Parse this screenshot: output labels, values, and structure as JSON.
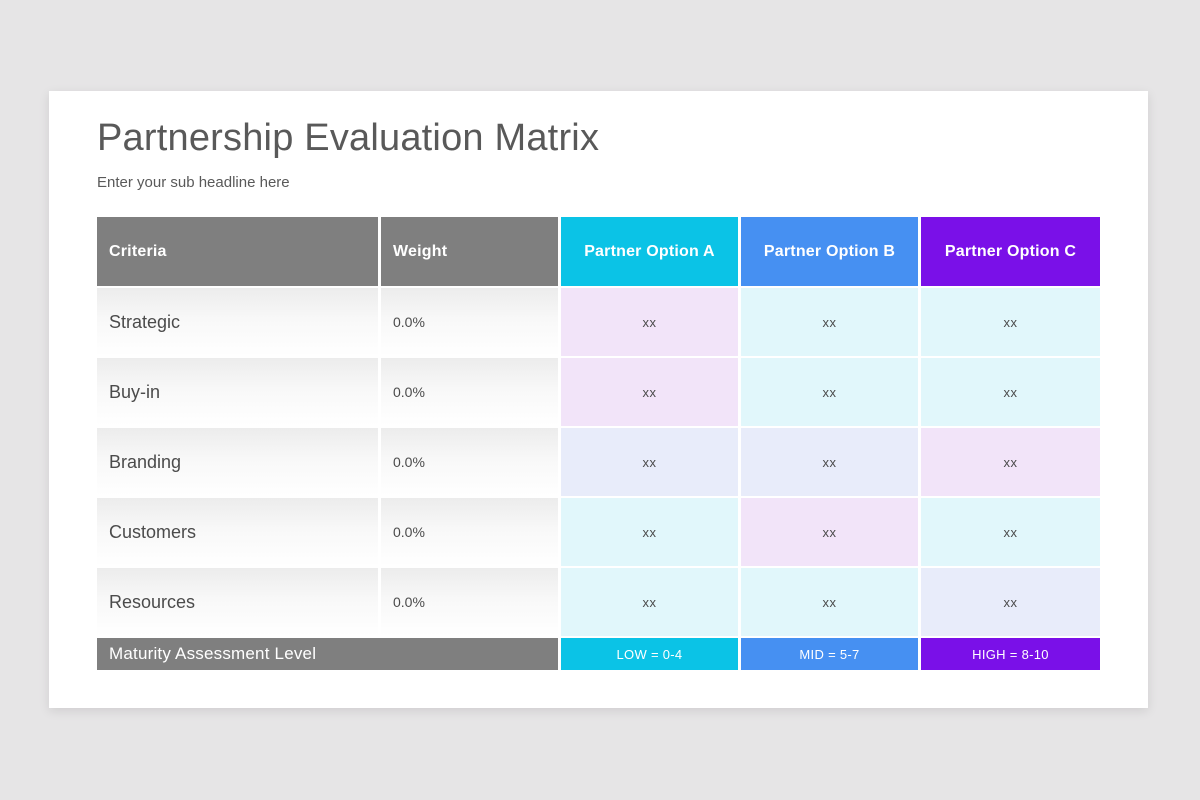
{
  "colors": {
    "page_bg": "#e6e5e6",
    "slide_bg": "#ffffff",
    "header_gray": "#7f7f7f",
    "accent_cyan": "#0bc3e6",
    "accent_blue": "#4690f2",
    "accent_purple": "#7a10e8",
    "tints": {
      "pink": "#f2e4f9",
      "cyan": "#e1f7fb",
      "periwinkle": "#e8ecfa"
    }
  },
  "header": {
    "title": "Partnership Evaluation Matrix",
    "subtitle": "Enter your sub headline here"
  },
  "table": {
    "columns": [
      {
        "key": "criteria",
        "label": "Criteria",
        "bg": "#7f7f7f",
        "align": "left"
      },
      {
        "key": "weight",
        "label": "Weight",
        "bg": "#7f7f7f",
        "align": "left"
      },
      {
        "key": "option-a",
        "label": "Partner Option A",
        "bg": "#0bc3e6",
        "align": "center"
      },
      {
        "key": "option-b",
        "label": "Partner Option B",
        "bg": "#4690f2",
        "align": "center"
      },
      {
        "key": "option-c",
        "label": "Partner Option C",
        "bg": "#7a10e8",
        "align": "center"
      }
    ],
    "rows": [
      {
        "criteria": "Strategic",
        "weight": "0.0%",
        "options": [
          {
            "value": "xx",
            "tint": "pink"
          },
          {
            "value": "xx",
            "tint": "cyan"
          },
          {
            "value": "xx",
            "tint": "cyan"
          }
        ]
      },
      {
        "criteria": "Buy-in",
        "weight": "0.0%",
        "options": [
          {
            "value": "xx",
            "tint": "pink"
          },
          {
            "value": "xx",
            "tint": "cyan"
          },
          {
            "value": "xx",
            "tint": "cyan"
          }
        ]
      },
      {
        "criteria": "Branding",
        "weight": "0.0%",
        "options": [
          {
            "value": "xx",
            "tint": "periwinkle"
          },
          {
            "value": "xx",
            "tint": "periwinkle"
          },
          {
            "value": "xx",
            "tint": "pink"
          }
        ]
      },
      {
        "criteria": "Customers",
        "weight": "0.0%",
        "options": [
          {
            "value": "xx",
            "tint": "cyan"
          },
          {
            "value": "xx",
            "tint": "pink"
          },
          {
            "value": "xx",
            "tint": "cyan"
          }
        ]
      },
      {
        "criteria": "Resources",
        "weight": "0.0%",
        "options": [
          {
            "value": "xx",
            "tint": "cyan"
          },
          {
            "value": "xx",
            "tint": "cyan"
          },
          {
            "value": "xx",
            "tint": "periwinkle"
          }
        ]
      }
    ],
    "footer": {
      "label": "Maturity Assessment Level",
      "label_bg": "#7f7f7f",
      "badges": [
        {
          "text": "LOW = 0-4",
          "bg": "#0bc3e6"
        },
        {
          "text": "MID = 5-7",
          "bg": "#4690f2"
        },
        {
          "text": "HIGH = 8-10",
          "bg": "#7a10e8"
        }
      ]
    }
  }
}
